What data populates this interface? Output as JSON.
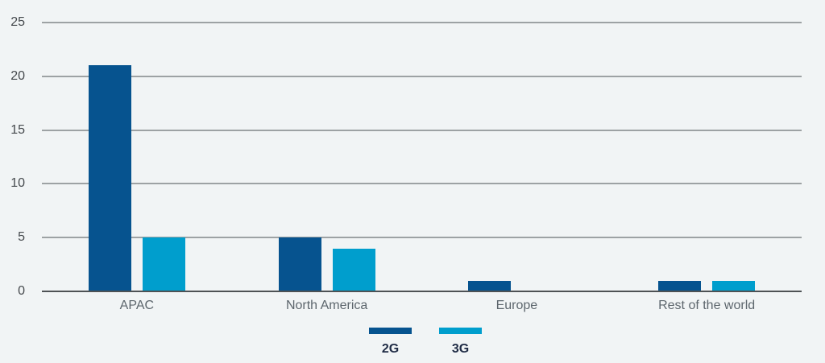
{
  "chart_data": {
    "type": "bar",
    "categories": [
      "APAC",
      "North America",
      "Europe",
      "Rest of the world"
    ],
    "series": [
      {
        "name": "2G",
        "color": "#06538f",
        "values": [
          21,
          5,
          1,
          1
        ]
      },
      {
        "name": "3G",
        "color": "#009ecd",
        "values": [
          5,
          4,
          0,
          1
        ]
      }
    ],
    "title": "",
    "xlabel": "",
    "ylabel": "",
    "ylim": [
      0,
      25
    ],
    "yticks": [
      0,
      5,
      10,
      15,
      20,
      25
    ],
    "grid": true,
    "legend_position": "bottom-center"
  },
  "colors": {
    "background": "#f1f4f5",
    "gridline": "#9da2a4",
    "baseline": "#4e5255",
    "ytick_label": "#45494d",
    "category_label": "#5d666d",
    "legend_label": "#1f2b45"
  }
}
